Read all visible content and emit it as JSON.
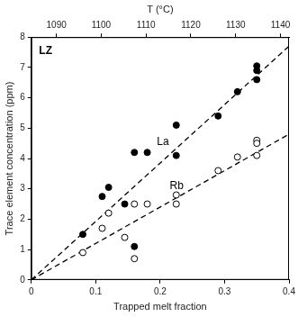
{
  "chart_data": {
    "type": "scatter",
    "xlabel": "Trapped melt fraction",
    "ylabel": "Trace element concentration (ppm)",
    "x2label": "T (°C)",
    "xlim": [
      0,
      0.4
    ],
    "xticks": [
      0,
      0.1,
      0.2,
      0.3,
      0.4
    ],
    "ylim": [
      0,
      8
    ],
    "yticks": [
      0,
      1,
      2,
      3,
      4,
      5,
      6,
      7,
      8
    ],
    "x2lim": [
      1084.4,
      1141.9
    ],
    "x2ticks": [
      1090,
      1100,
      1110,
      1120,
      1130,
      1140
    ],
    "grid": false,
    "series": [
      {
        "name": "La",
        "type": "scatter",
        "marker": "filled",
        "color": "#000000",
        "x": [
          0.08,
          0.11,
          0.12,
          0.145,
          0.16,
          0.18,
          0.16,
          0.225,
          0.225,
          0.29,
          0.32,
          0.35,
          0.35,
          0.35
        ],
        "values": [
          1.5,
          2.75,
          3.05,
          2.5,
          4.2,
          4.2,
          1.1,
          5.1,
          4.1,
          5.4,
          6.2,
          7.05,
          6.9,
          6.6
        ]
      },
      {
        "name": "Rb",
        "type": "scatter",
        "marker": "open",
        "color": "#000000",
        "x": [
          0.08,
          0.11,
          0.12,
          0.145,
          0.16,
          0.16,
          0.18,
          0.225,
          0.225,
          0.29,
          0.32,
          0.35,
          0.35,
          0.35
        ],
        "values": [
          0.9,
          1.7,
          2.2,
          1.4,
          0.7,
          2.5,
          2.5,
          2.8,
          2.5,
          3.6,
          4.05,
          4.6,
          4.5,
          4.1
        ]
      },
      {
        "type": "line",
        "line_style": "dashed",
        "color": "#000000",
        "x": [
          0,
          0.4
        ],
        "values": [
          0,
          7.7
        ]
      },
      {
        "type": "line",
        "line_style": "dashed",
        "color": "#000000",
        "x": [
          0,
          0.4
        ],
        "values": [
          0,
          4.8
        ]
      }
    ],
    "annotations": [
      {
        "text": "LZ",
        "x": 0.012,
        "y": 7.55
      },
      {
        "text": "La",
        "x": 0.195,
        "y": 4.55
      },
      {
        "text": "Rb",
        "x": 0.215,
        "y": 3.1
      }
    ]
  }
}
